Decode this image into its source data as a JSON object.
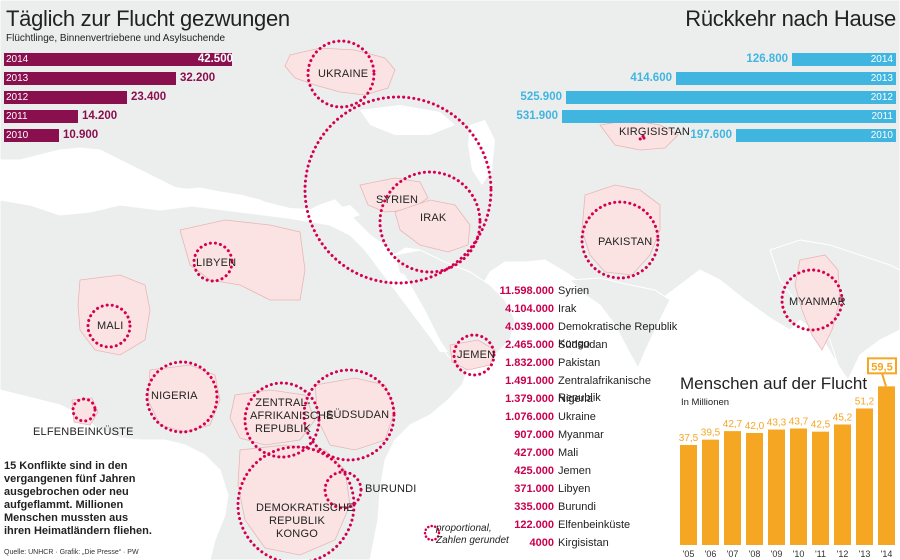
{
  "left_panel": {
    "title": "Täglich zur Flucht gezwungen",
    "subtitle": "Flüchtlinge, Binnenvertriebene und Asylsuchende",
    "bars": [
      {
        "year": "2014",
        "value": "42.500",
        "n": 42500
      },
      {
        "year": "2013",
        "value": "32.200",
        "n": 32200
      },
      {
        "year": "2012",
        "value": "23.400",
        "n": 23400
      },
      {
        "year": "2011",
        "value": "14.200",
        "n": 14200
      },
      {
        "year": "2010",
        "value": "10.900",
        "n": 10900
      }
    ]
  },
  "right_panel": {
    "title": "Rückkehr nach Hause",
    "bars": [
      {
        "year": "2014",
        "value": "126.800",
        "n": 126800
      },
      {
        "year": "2013",
        "value": "414.600",
        "n": 414600
      },
      {
        "year": "2012",
        "value": "525.900",
        "n": 525900
      },
      {
        "year": "2011",
        "value": "531.900",
        "n": 531900
      },
      {
        "year": "2010",
        "value": "197.600",
        "n": 197600
      }
    ]
  },
  "countries": [
    {
      "name": "Syrien",
      "value": "11.598.000"
    },
    {
      "name": "Irak",
      "value": "4.104.000"
    },
    {
      "name": "Demokratische Republik Kongo",
      "value": "4.039.000"
    },
    {
      "name": "Südsudan",
      "value": "2.465.000"
    },
    {
      "name": "Pakistan",
      "value": "1.832.000"
    },
    {
      "name": "Zentralafrikanische Republik",
      "value": "1.491.000"
    },
    {
      "name": "Nigeria",
      "value": "1.379.000"
    },
    {
      "name": "Ukraine",
      "value": "1.076.000"
    },
    {
      "name": "Myanmar",
      "value": "907.000"
    },
    {
      "name": "Mali",
      "value": "427.000"
    },
    {
      "name": "Jemen",
      "value": "425.000"
    },
    {
      "name": "Libyen",
      "value": "371.000"
    },
    {
      "name": "Burundi",
      "value": "335.000"
    },
    {
      "name": "Elfenbeinküste",
      "value": "122.000"
    },
    {
      "name": "Kirgisistan",
      "value": "4000"
    }
  ],
  "map_labels": {
    "ukraine": "UKRAINE",
    "syrien": "SYRIEN",
    "irak": "IRAK",
    "kirgisistan": "KIRGISISTAN",
    "pakistan": "PAKISTAN",
    "myanmar": "MYANMAR",
    "libyen": "LIBYEN",
    "mali": "MALI",
    "nigeria": "NIGERIA",
    "elfenbeinkueste": "ELFENBEINKÜSTE",
    "jemen": "JEMEN",
    "zar_line1": "ZENTRAL-",
    "zar_line2": "AFRIKANISCHE",
    "zar_line3": "REPUBLIK",
    "suedsudan": "SÜDSUDAN",
    "burundi": "BURUNDI",
    "drk_line1": "DEMOKRATISCHE",
    "drk_line2": "REPUBLIK KONGO"
  },
  "note": "15 Konflikte sind in den vergangenen fünf Jahren ausgebrochen oder neu aufgeflammt. Millionen Menschen mussten aus ihren Heimatländern fliehen.",
  "legend": {
    "line1": "proportional,",
    "line2": "Zahlen gerundet"
  },
  "source": "Quelle: UNHCR · Grafik: „Die Presse“ · PW",
  "colors": {
    "left_bar": "#8a0f4e",
    "right_bar": "#3fb5e0",
    "circle": "#d4004f",
    "orange": "#f5a623",
    "land": "#fbe3e3",
    "land_other": "#eceeee"
  },
  "chart_data": {
    "type": "bar",
    "title": "Menschen auf der Flucht",
    "subtitle": "In Millionen",
    "categories": [
      "'05",
      "'06",
      "'07",
      "'08",
      "'09",
      "'10",
      "'11",
      "'12",
      "'13",
      "'14"
    ],
    "values": [
      37.5,
      39.5,
      42.7,
      42.0,
      43.3,
      43.7,
      42.5,
      45.2,
      51.2,
      59.5
    ],
    "labels": [
      "37,5",
      "39,5",
      "42,7",
      "42,0",
      "43,3",
      "43,7",
      "42,5",
      "45,2",
      "51,2",
      "59,5"
    ],
    "highlight": "59,5",
    "ylim": [
      0,
      60
    ]
  }
}
